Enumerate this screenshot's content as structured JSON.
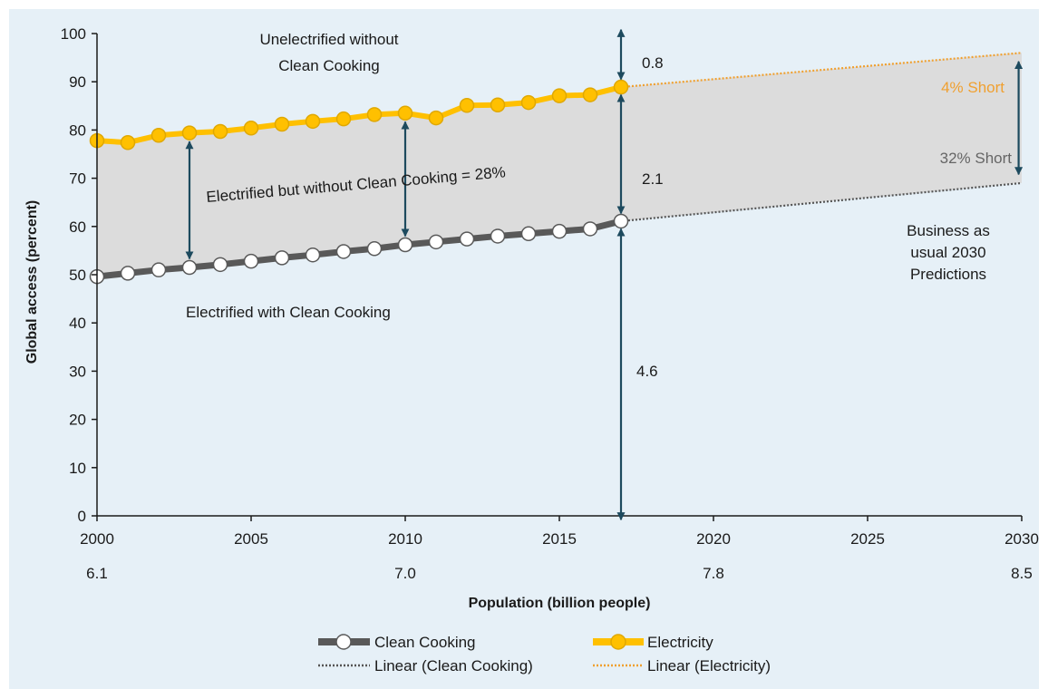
{
  "chart_data": {
    "type": "line",
    "ylabel": "Global access (percent)",
    "xlabel": "Population (billion people)",
    "xlim": [
      2000,
      2030
    ],
    "ylim": [
      0,
      100
    ],
    "x_ticks": [
      2000,
      2005,
      2010,
      2015,
      2020,
      2025,
      2030
    ],
    "y_ticks": [
      0,
      10,
      20,
      30,
      40,
      50,
      60,
      70,
      80,
      90,
      100
    ],
    "population_ticks": [
      {
        "year": 2000,
        "label": "6.1"
      },
      {
        "year": 2010,
        "label": "7.0"
      },
      {
        "year": 2020,
        "label": "7.8"
      },
      {
        "year": 2030,
        "label": "8.5"
      }
    ],
    "grid": false,
    "legend_position": "bottom",
    "years": [
      2000,
      2001,
      2002,
      2003,
      2004,
      2005,
      2006,
      2007,
      2008,
      2009,
      2010,
      2011,
      2012,
      2013,
      2014,
      2015,
      2016,
      2017
    ],
    "series": [
      {
        "name": "Clean Cooking",
        "color": "#595959",
        "values": [
          49.6,
          50.3,
          51.0,
          51.5,
          52.1,
          52.8,
          53.5,
          54.1,
          54.8,
          55.4,
          56.2,
          56.8,
          57.4,
          58.0,
          58.5,
          59.0,
          59.5,
          61.1
        ]
      },
      {
        "name": "Electricity",
        "color": "#ffc000",
        "values": [
          77.8,
          77.4,
          78.9,
          79.4,
          79.7,
          80.4,
          81.2,
          81.8,
          82.3,
          83.2,
          83.5,
          82.5,
          85.1,
          85.2,
          85.7,
          87.1,
          87.3,
          88.9
        ]
      }
    ],
    "trend_lines": [
      {
        "name": "Linear (Clean Cooking)",
        "color": "#555555",
        "from": [
          2017,
          61.1
        ],
        "to": [
          2030,
          69.0
        ]
      },
      {
        "name": "Linear (Electricity)",
        "color": "#f0a030",
        "from": [
          2017,
          88.9
        ],
        "to": [
          2030,
          96.0
        ]
      }
    ],
    "annotations": {
      "unelectrified": [
        "Unelectrified without",
        "Clean Cooking"
      ],
      "electrified_without": "Electrified but without Clean Cooking = 28%",
      "electrified_with": "Electrified with Clean Cooking",
      "gap_top": "0.8",
      "gap_middle": "2.1",
      "gap_bottom": "4.6",
      "elec_short": "4% Short",
      "cooking_short": "32% Short",
      "bau": [
        "Business as",
        "usual 2030",
        "Predictions"
      ]
    },
    "colors": {
      "shade": "#dcdcdc",
      "arrow": "#1d4a5e",
      "elec_short_text": "#f0a030",
      "cooking_short_text": "#666666"
    }
  }
}
